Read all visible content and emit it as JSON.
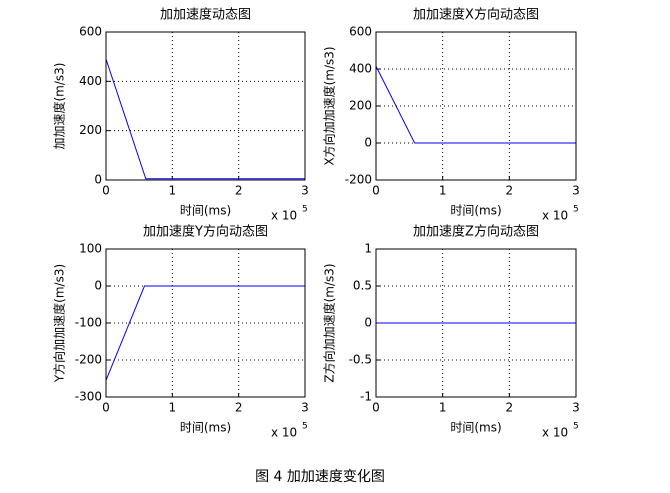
{
  "chart_data": [
    {
      "type": "line",
      "title": "加加速度动态图",
      "x_label": "时间(ms)",
      "y_label": "加加速度(m/s3)",
      "x_multiplier": "x 10",
      "x_exponent": "5",
      "x": [
        0,
        0.6,
        3
      ],
      "values": [
        490,
        5,
        5
      ],
      "color": "#0000ff",
      "xlim": [
        0,
        3
      ],
      "xticks": [
        0,
        1,
        2,
        3
      ],
      "ylim": [
        0,
        600
      ],
      "yticks": [
        0,
        200,
        400,
        600
      ],
      "grid": true
    },
    {
      "type": "line",
      "title": "加加速度X方向动态图",
      "x_label": "时间(ms)",
      "y_label": "X方向加加速度(m/s3)",
      "x_multiplier": "x 10",
      "x_exponent": "5",
      "x": [
        0,
        0.58,
        3
      ],
      "values": [
        415,
        0,
        0
      ],
      "color": "#0000ff",
      "xlim": [
        0,
        3
      ],
      "xticks": [
        0,
        1,
        2,
        3
      ],
      "ylim": [
        -200,
        600
      ],
      "yticks": [
        -200,
        0,
        200,
        400,
        600
      ],
      "grid": true
    },
    {
      "type": "line",
      "title": "加加速度Y方向动态图",
      "x_label": "时间(ms)",
      "y_label": "Y方向加加速度(m/s3)",
      "x_multiplier": "x 10",
      "x_exponent": "5",
      "x": [
        0,
        0.58,
        3
      ],
      "values": [
        -255,
        0,
        0
      ],
      "color": "#0000ff",
      "xlim": [
        0,
        3
      ],
      "xticks": [
        0,
        1,
        2,
        3
      ],
      "ylim": [
        -300,
        100
      ],
      "yticks": [
        -300,
        -200,
        -100,
        0,
        100
      ],
      "grid": true
    },
    {
      "type": "line",
      "title": "加加速度Z方向动态图",
      "x_label": "时间(ms)",
      "y_label": "Z方向加加速度(m/s3)",
      "x_multiplier": "x 10",
      "x_exponent": "5",
      "x": [
        0,
        3
      ],
      "values": [
        0,
        0
      ],
      "color": "#0000ff",
      "xlim": [
        0,
        3
      ],
      "xticks": [
        0,
        1,
        2,
        3
      ],
      "ylim": [
        -1,
        1
      ],
      "yticks": [
        -1,
        -0.5,
        0,
        0.5,
        1
      ],
      "grid": true
    }
  ],
  "caption": "图 4  加加速度变化图"
}
